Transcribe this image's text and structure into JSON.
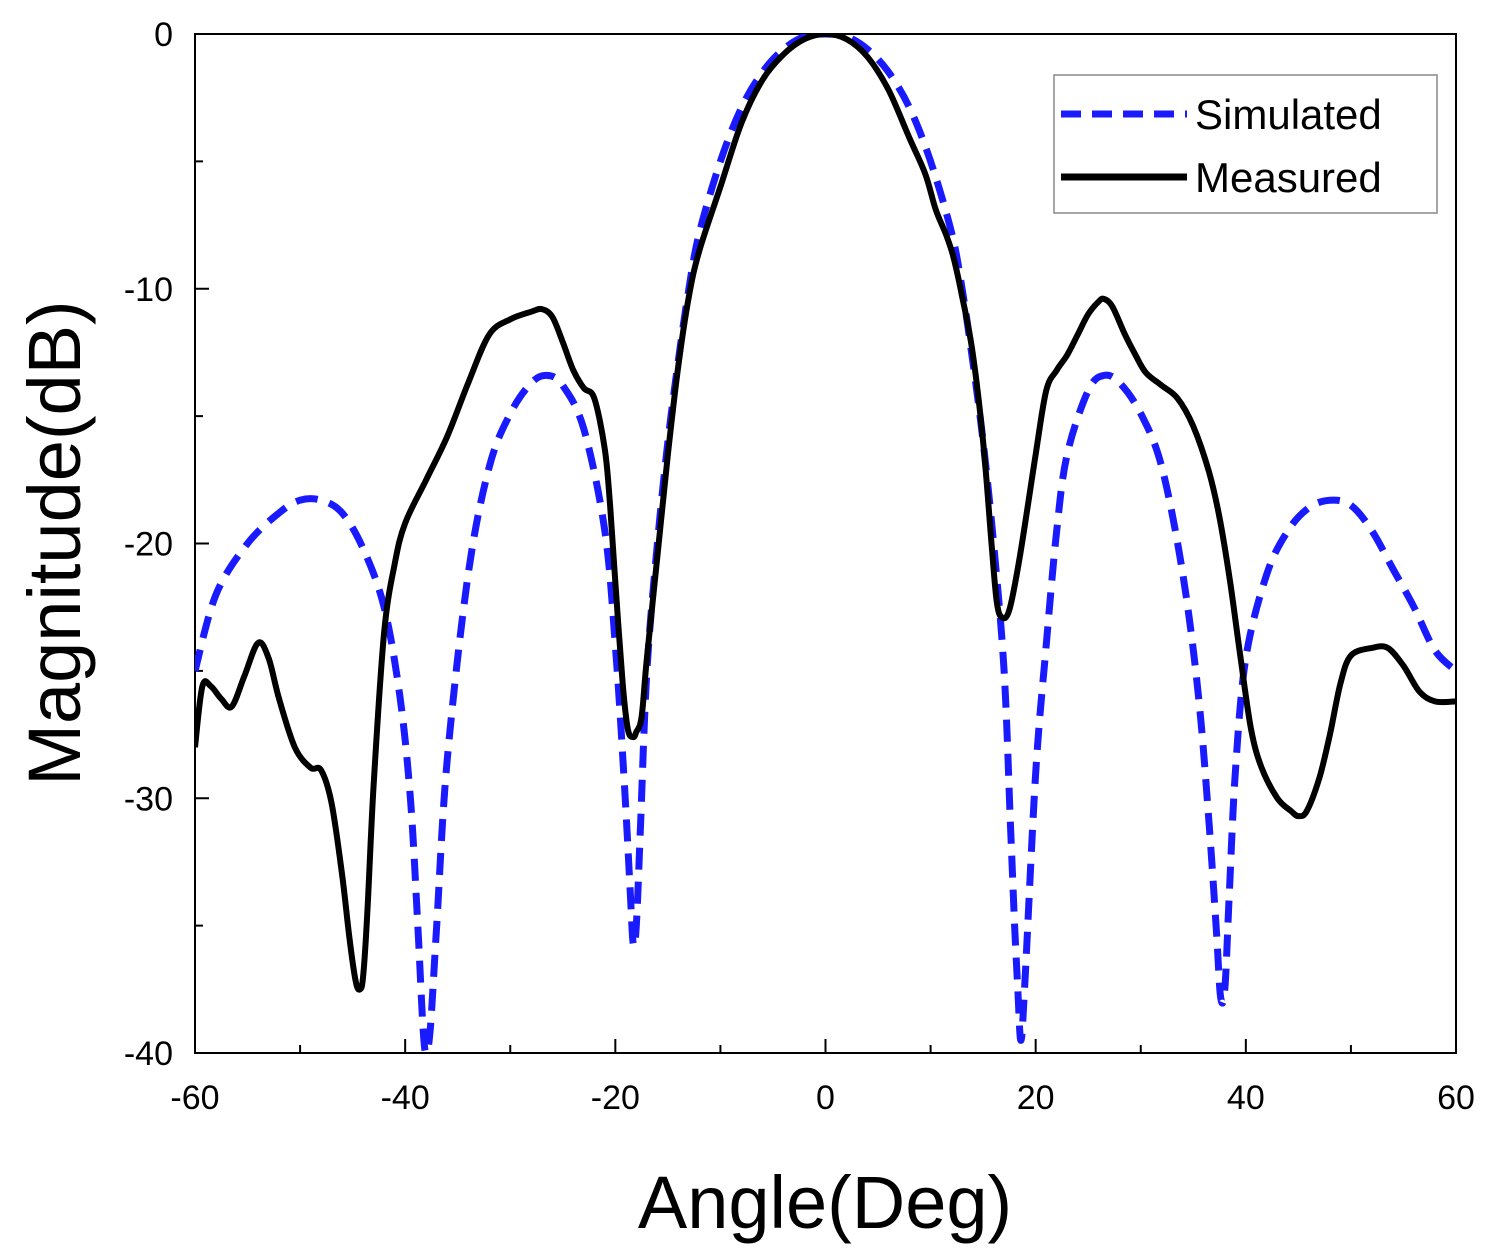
{
  "chart_data": {
    "type": "line",
    "title": "",
    "xlabel": "Angle(Deg)",
    "ylabel": "Magnitude(dB)",
    "xlim": [
      -60,
      60
    ],
    "ylim": [
      -40,
      0
    ],
    "xticks": [
      -60,
      -40,
      -20,
      0,
      20,
      40,
      60
    ],
    "xtick_labels": [
      "-60",
      "-40",
      "-20",
      "0",
      "20",
      "40",
      "60"
    ],
    "yticks": [
      0,
      -10,
      -20,
      -30,
      -40
    ],
    "ytick_labels": [
      "0",
      "-10",
      "-20",
      "-30",
      "-40"
    ],
    "grid": false,
    "legend_position": "top-right",
    "series": [
      {
        "name": "Simulated",
        "style": "dashed",
        "color": "#1a1aff",
        "x": [
          -60,
          -58,
          -55,
          -52,
          -50,
          -48,
          -46,
          -44,
          -42,
          -40.5,
          -39.5,
          -38.8,
          -38.3,
          -38,
          -37.6,
          -37,
          -36,
          -34,
          -32,
          -30,
          -28,
          -26.5,
          -25,
          -23,
          -21,
          -20,
          -19.2,
          -18.6,
          -18.3,
          -18,
          -17.6,
          -17,
          -16,
          -15,
          -14,
          -13,
          -12,
          -10,
          -8,
          -6,
          -4,
          -2,
          0,
          2,
          4,
          6,
          8,
          10,
          12,
          13,
          14,
          15,
          16,
          17,
          17.6,
          18,
          18.3,
          18.6,
          19,
          20,
          21,
          22,
          23,
          25,
          26.5,
          28,
          30,
          32,
          34,
          35.5,
          36.5,
          37.2,
          37.6,
          38,
          38.4,
          39,
          40,
          42,
          44,
          46,
          48,
          50,
          52,
          54,
          56,
          58,
          60
        ],
        "values": [
          -25,
          -22,
          -20,
          -18.8,
          -18.3,
          -18.3,
          -18.8,
          -20.2,
          -22.5,
          -26,
          -30,
          -35,
          -39,
          -40,
          -39,
          -35,
          -28.5,
          -21.2,
          -17,
          -14.9,
          -13.7,
          -13.4,
          -13.8,
          -15.5,
          -19.5,
          -24,
          -29,
          -33.5,
          -35.7,
          -35,
          -31,
          -25,
          -20,
          -16,
          -12.8,
          -10,
          -7.8,
          -5,
          -2.9,
          -1.5,
          -0.6,
          -0.1,
          0,
          -0.1,
          -0.6,
          -1.5,
          -2.9,
          -5,
          -7.8,
          -10,
          -12.8,
          -16,
          -20,
          -25,
          -31,
          -35,
          -37.5,
          -39.5,
          -37,
          -29,
          -24,
          -19.5,
          -16.5,
          -14,
          -13.4,
          -13.7,
          -14.9,
          -17,
          -21.2,
          -26,
          -31,
          -35.2,
          -37.8,
          -37.5,
          -34,
          -29,
          -24.5,
          -21.2,
          -19.5,
          -18.6,
          -18.3,
          -18.5,
          -19.5,
          -21,
          -22.5,
          -24.2,
          -25
        ]
      },
      {
        "name": "Measured",
        "style": "solid",
        "color": "#000000",
        "x": [
          -60,
          -59.3,
          -58.5,
          -57.5,
          -56.5,
          -55.3,
          -54,
          -53,
          -52,
          -50.5,
          -49,
          -48,
          -47,
          -46,
          -45.3,
          -44.7,
          -44.3,
          -44,
          -43.6,
          -43,
          -42,
          -41,
          -40,
          -38,
          -36,
          -34,
          -32,
          -30,
          -28,
          -27,
          -26,
          -25,
          -24,
          -23,
          -22,
          -21,
          -20.5,
          -20,
          -19.3,
          -18.8,
          -18.3,
          -18,
          -17.5,
          -17,
          -16,
          -15,
          -14,
          -13,
          -12,
          -10,
          -8,
          -6,
          -4,
          -2,
          0,
          2,
          4,
          6,
          8,
          9.5,
          10.5,
          11.5,
          12.2,
          13,
          14,
          15,
          15.8,
          16.3,
          16.8,
          17.5,
          18.5,
          20,
          21,
          22,
          23,
          24,
          25,
          26,
          26.5,
          27.3,
          28.5,
          29.5,
          30.5,
          32,
          33.5,
          35,
          36.5,
          37.5,
          38.5,
          39.5,
          40.5,
          41.5,
          43,
          44.3,
          45,
          45.8,
          47,
          48,
          49,
          50,
          52,
          53.5,
          55,
          56.5,
          58,
          60
        ],
        "values": [
          -28,
          -25.6,
          -25.6,
          -26.1,
          -26.4,
          -25.2,
          -23.9,
          -24.5,
          -26.1,
          -28,
          -28.8,
          -28.9,
          -30.2,
          -33,
          -35.5,
          -37.2,
          -37.5,
          -37,
          -34.5,
          -29.5,
          -23.5,
          -20.8,
          -19.2,
          -17.5,
          -15.8,
          -13.7,
          -11.8,
          -11.2,
          -10.9,
          -10.8,
          -11.1,
          -12.1,
          -13.2,
          -13.9,
          -14.3,
          -16.3,
          -18.5,
          -21.5,
          -25.5,
          -27.3,
          -27.6,
          -27.4,
          -26.8,
          -24.5,
          -20.5,
          -16.5,
          -13,
          -10.3,
          -8.5,
          -6,
          -3.5,
          -1.8,
          -0.8,
          -0.2,
          0,
          -0.2,
          -0.9,
          -2.2,
          -4.1,
          -5.5,
          -6.9,
          -7.9,
          -8.8,
          -10.3,
          -12.5,
          -16,
          -20,
          -22.3,
          -22.9,
          -22.6,
          -20.5,
          -16.5,
          -14,
          -13.2,
          -12.6,
          -11.8,
          -11,
          -10.5,
          -10.4,
          -10.7,
          -11.8,
          -12.6,
          -13.3,
          -13.8,
          -14.3,
          -15.4,
          -17.2,
          -19,
          -21.5,
          -24.5,
          -27.3,
          -28.8,
          -30,
          -30.5,
          -30.7,
          -30.5,
          -29.2,
          -27.5,
          -25.5,
          -24.4,
          -24.1,
          -24.1,
          -24.8,
          -25.8,
          -26.2,
          -26.2
        ]
      }
    ]
  }
}
